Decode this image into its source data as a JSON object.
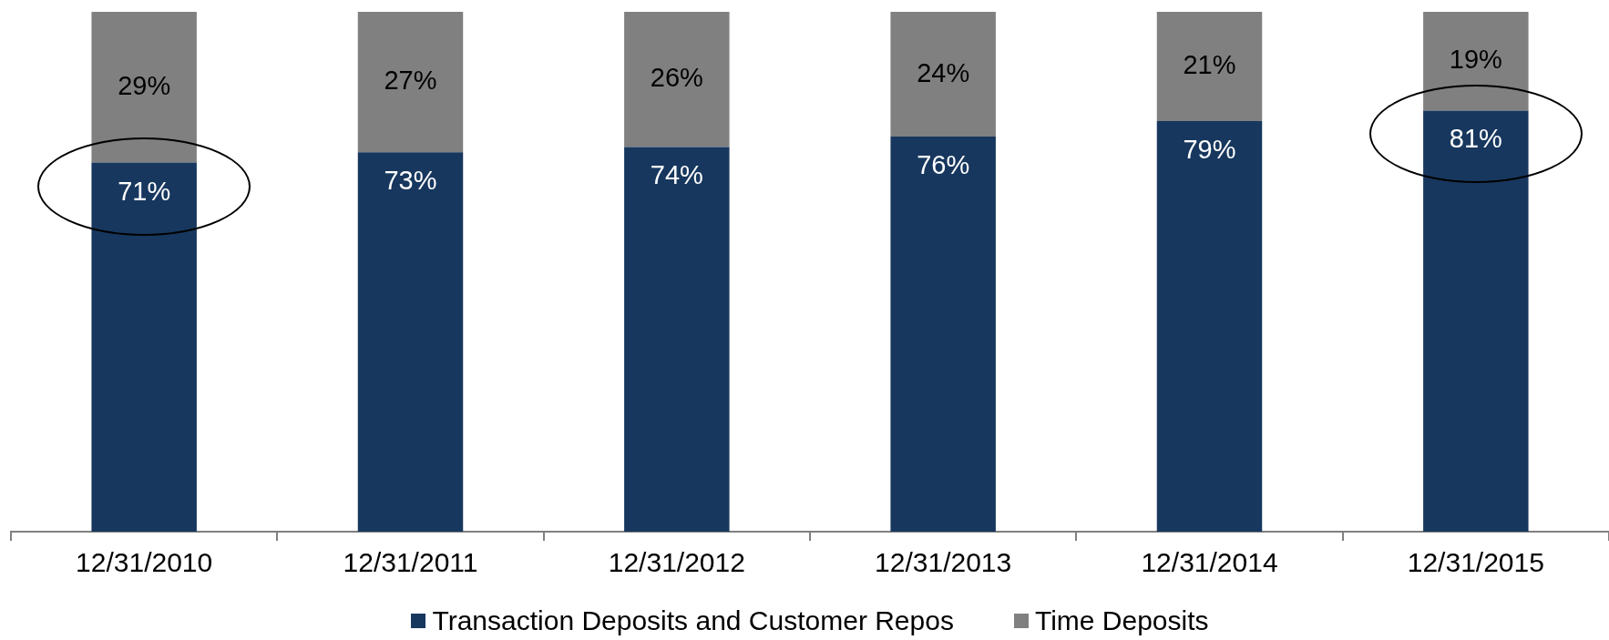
{
  "chart_data": {
    "type": "bar",
    "stacked": true,
    "legend": "bottom",
    "tick_labels": "x",
    "categories": [
      "12/31/2010",
      "12/31/2011",
      "12/31/2012",
      "12/31/2013",
      "12/31/2014",
      "12/31/2015"
    ],
    "series": [
      {
        "name": "Transaction Deposits and Customer Repos",
        "color": "#17375e",
        "values": [
          71,
          73,
          74,
          76,
          79,
          81
        ],
        "value_labels": [
          "71%",
          "73%",
          "74%",
          "76%",
          "79%",
          "81%"
        ]
      },
      {
        "name": "Time Deposits",
        "color": "#808080",
        "values": [
          29,
          27,
          26,
          24,
          21,
          19
        ],
        "value_labels": [
          "29%",
          "27%",
          "26%",
          "24%",
          "21%",
          "19%"
        ]
      }
    ]
  }
}
